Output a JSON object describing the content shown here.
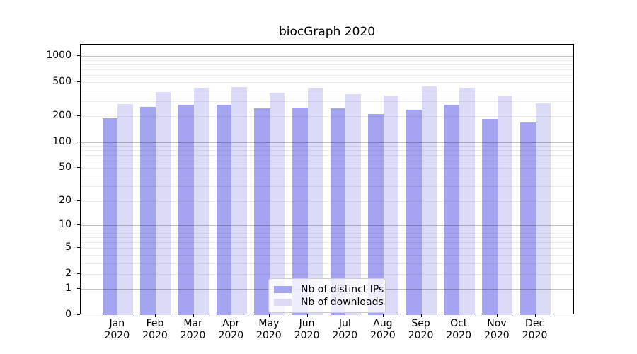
{
  "chart_data": {
    "type": "bar",
    "title": "biocGraph 2020",
    "categories": [
      "Jan",
      "Feb",
      "Mar",
      "Apr",
      "May",
      "Jun",
      "Jul",
      "Aug",
      "Sep",
      "Oct",
      "Nov",
      "Dec"
    ],
    "category_year": "2020",
    "series": [
      {
        "name": "Nb of distinct IPs",
        "color": "#a4a4f1",
        "values": [
          188,
          255,
          270,
          270,
          248,
          250,
          247,
          212,
          240,
          272,
          185,
          170
        ]
      },
      {
        "name": "Nb of downloads",
        "color": "#dbdbf8",
        "values": [
          280,
          380,
          425,
          435,
          378,
          425,
          360,
          345,
          445,
          425,
          345,
          285
        ]
      }
    ],
    "y_axis": {
      "scale": "log10(value+1)",
      "tick_values": [
        0,
        1,
        2,
        5,
        10,
        20,
        50,
        100,
        200,
        500,
        1000
      ],
      "major_grid_values": [
        1,
        10,
        100,
        1000
      ],
      "minor_grid_values": [
        2,
        3,
        4,
        5,
        6,
        7,
        8,
        9,
        20,
        30,
        40,
        50,
        60,
        70,
        80,
        90,
        200,
        300,
        400,
        500,
        600,
        700,
        800,
        900
      ],
      "range_max": 1350
    },
    "legend": {
      "position": "bottom-center"
    },
    "colors": {
      "spine": "#000000",
      "major_grid": "#c2c2c2",
      "minor_grid": "#ececec",
      "legend_border": "#cccccc",
      "background": "#ffffff",
      "text": "#000000"
    }
  }
}
